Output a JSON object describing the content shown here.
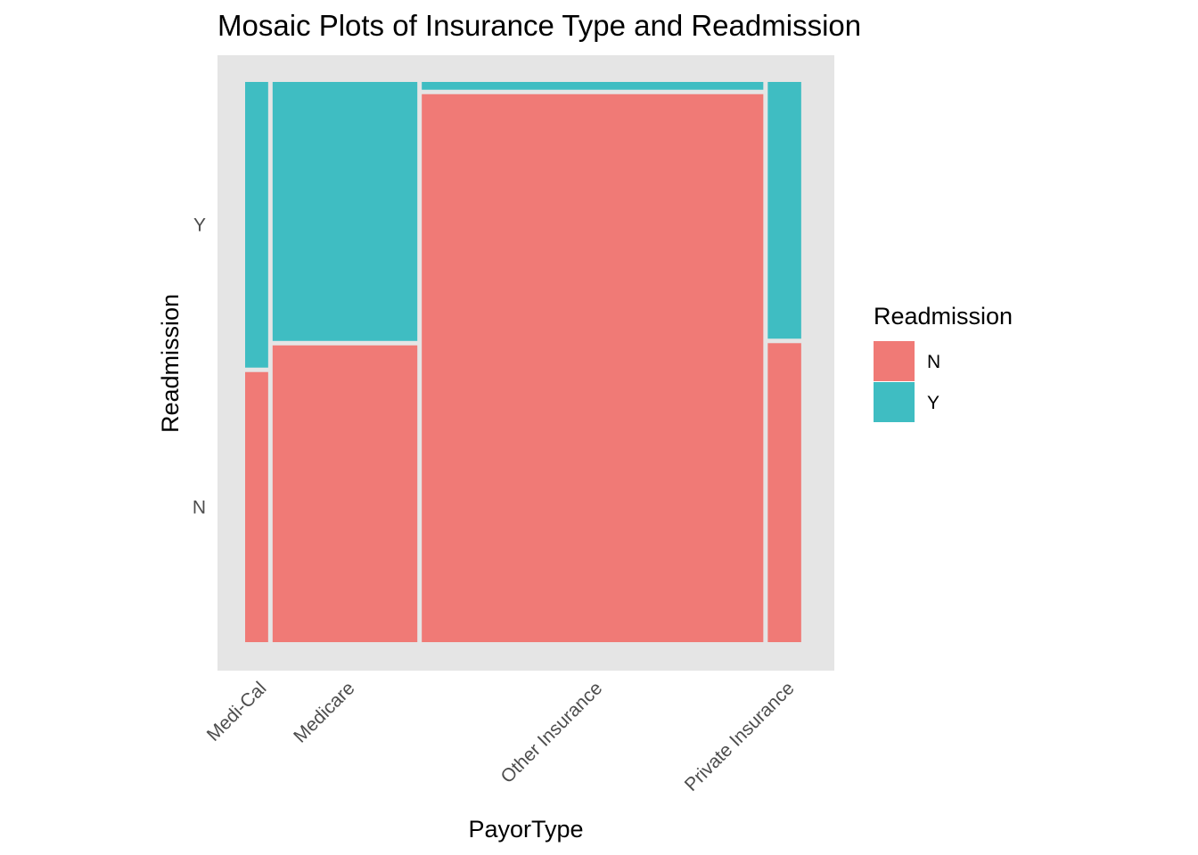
{
  "chart_data": {
    "type": "mosaic",
    "title": "Mosaic Plots of Insurance Type and Readmission",
    "xlabel": "PayorType",
    "ylabel": "Readmission",
    "categories": [
      "Medi-Cal",
      "Medicare",
      "Other Insurance",
      "Private Insurance"
    ],
    "category_widths": [
      0.042,
      0.264,
      0.623,
      0.061
    ],
    "y_levels": [
      "N",
      "Y"
    ],
    "series": [
      {
        "name": "N",
        "color": "#F07A76",
        "values": [
          0.486,
          0.534,
          0.986,
          0.538
        ]
      },
      {
        "name": "Y",
        "color": "#3FBDC2",
        "values": [
          0.514,
          0.466,
          0.014,
          0.462
        ]
      }
    ],
    "y_tick_labels": [
      "N",
      "Y"
    ],
    "legend": {
      "title": "Readmission",
      "position": "right",
      "entries": [
        "N",
        "Y"
      ]
    },
    "panel_background": "#E5E5E5",
    "grid": false
  }
}
